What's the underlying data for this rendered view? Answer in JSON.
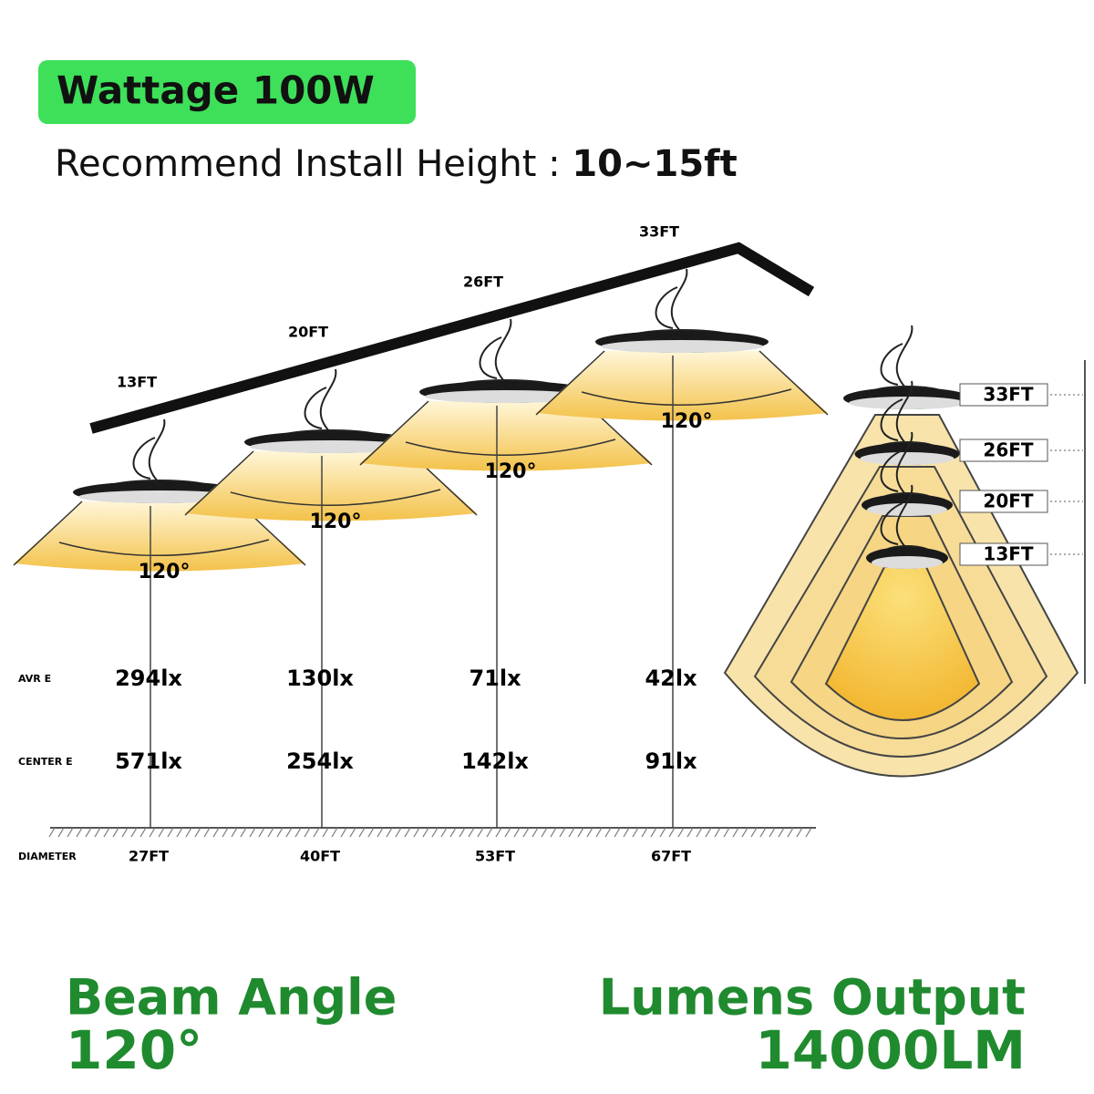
{
  "header": {
    "badge": "Wattage 100W",
    "install_label": "Recommend Install Height :",
    "install_value": "10~15ft"
  },
  "row_labels": {
    "avr": "AVR E",
    "center": "CENTER E",
    "diameter": "DIAMETER"
  },
  "lamps": [
    {
      "height": "13FT",
      "angle": "120°",
      "avr": "294lx",
      "center": "571lx",
      "diameter": "27FT"
    },
    {
      "height": "20FT",
      "angle": "120°",
      "avr": "130lx",
      "center": "254lx",
      "diameter": "40FT"
    },
    {
      "height": "26FT",
      "angle": "120°",
      "avr": "71lx",
      "center": "142lx",
      "diameter": "53FT"
    },
    {
      "height": "33FT",
      "angle": "120°",
      "avr": "42lx",
      "center": "91lx",
      "diameter": "67FT"
    }
  ],
  "side_heights": [
    "33FT",
    "26FT",
    "20FT",
    "13FT"
  ],
  "footer": {
    "beam_label": "Beam Angle",
    "beam_value": "120°",
    "lumens_label": "Lumens Output",
    "lumens_value": "14000LM"
  }
}
